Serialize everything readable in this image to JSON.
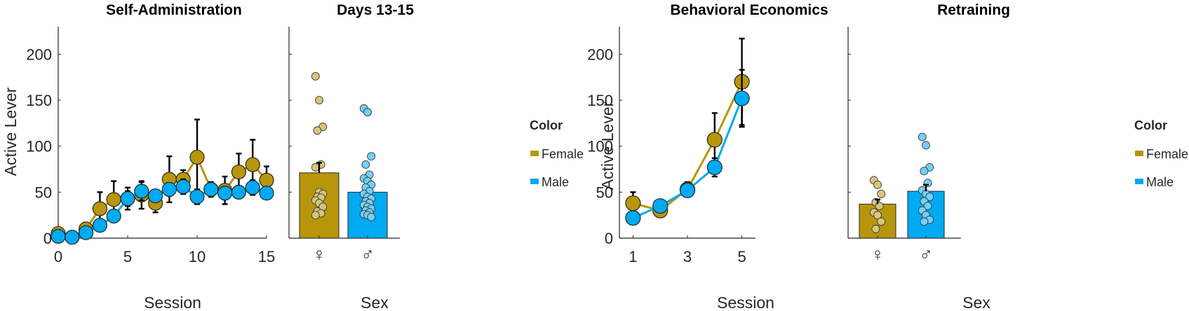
{
  "colors": {
    "female": "#B8960C",
    "male": "#00AAF2",
    "axis": "#262626",
    "error": "#000000"
  },
  "chart_data": [
    {
      "id": "self_admin",
      "type": "line",
      "title": "Self-Administration",
      "xlabel": "Session",
      "ylabel": "Active Lever",
      "xlim": [
        0,
        15
      ],
      "ylim": [
        0,
        230
      ],
      "xticks": [
        0,
        5,
        10,
        15
      ],
      "yticks": [
        0,
        50,
        100,
        150,
        200
      ],
      "x": [
        0,
        1,
        2,
        3,
        4,
        5,
        6,
        7,
        8,
        9,
        10,
        11,
        12,
        13,
        14,
        15
      ],
      "series": [
        {
          "key": "female",
          "values": [
            5,
            1,
            10,
            32,
            42,
            43,
            47,
            38,
            64,
            64,
            88,
            53,
            52,
            72,
            80,
            63
          ],
          "error": [
            0,
            0,
            0,
            18,
            20,
            12,
            15,
            10,
            25,
            10,
            41,
            8,
            15,
            20,
            27,
            15
          ]
        },
        {
          "key": "male",
          "values": [
            2,
            1,
            6,
            14,
            24,
            43,
            51,
            46,
            53,
            56,
            45,
            53,
            49,
            50,
            55,
            49
          ],
          "error": [
            0,
            0,
            0,
            0,
            0,
            8,
            10,
            0,
            7,
            8,
            8,
            6,
            7,
            0,
            8,
            0
          ]
        }
      ]
    },
    {
      "id": "days_13_15",
      "type": "bar",
      "title": "Days 13-15",
      "xlabel": "Sex",
      "ylim": [
        0,
        230
      ],
      "categories": [
        "♀",
        "♂"
      ],
      "values": [
        71,
        50
      ],
      "error": [
        11,
        0
      ],
      "points": [
        [
          176,
          150,
          121,
          117,
          80,
          77,
          50,
          48,
          45,
          44,
          41,
          38,
          34,
          29,
          27,
          25
        ],
        [
          141,
          137,
          89,
          80,
          69,
          65,
          62,
          58,
          55,
          51,
          48,
          45,
          43,
          40,
          38,
          36,
          34,
          32,
          30,
          28,
          26,
          25,
          23
        ]
      ]
    },
    {
      "id": "behavioral_economics",
      "type": "line",
      "title": "Behavioral Economics",
      "xlabel": "Session",
      "ylabel": "Active Lever",
      "xlim": [
        0.5,
        5.5
      ],
      "ylim": [
        0,
        230
      ],
      "xticks": [
        1,
        3,
        5
      ],
      "yticks": [
        0,
        50,
        100,
        150,
        200
      ],
      "x": [
        1,
        2,
        3,
        4,
        5
      ],
      "series": [
        {
          "key": "female",
          "values": [
            38,
            30,
            53,
            107,
            170
          ],
          "error": [
            12,
            0,
            8,
            29,
            47
          ]
        },
        {
          "key": "male",
          "values": [
            22,
            35,
            52,
            77,
            152
          ],
          "error": [
            0,
            0,
            0,
            10,
            31
          ]
        }
      ]
    },
    {
      "id": "retraining",
      "type": "bar",
      "title": "Retraining",
      "xlabel": "Sex",
      "ylim": [
        0,
        230
      ],
      "categories": [
        "♀",
        "♂"
      ],
      "values": [
        37,
        51
      ],
      "error": [
        5,
        7
      ],
      "points": [
        [
          63,
          58,
          48,
          39,
          35,
          28,
          25,
          18,
          10
        ],
        [
          110,
          101,
          77,
          73,
          60,
          52,
          48,
          45,
          40,
          35,
          30,
          25,
          20,
          18
        ]
      ]
    }
  ],
  "legends": [
    {
      "title": "Color",
      "items": [
        {
          "key": "female",
          "label": "Female"
        },
        {
          "key": "male",
          "label": "Male"
        }
      ]
    },
    {
      "title": "Color",
      "items": [
        {
          "key": "female",
          "label": "Female"
        },
        {
          "key": "male",
          "label": "Male"
        }
      ]
    }
  ]
}
